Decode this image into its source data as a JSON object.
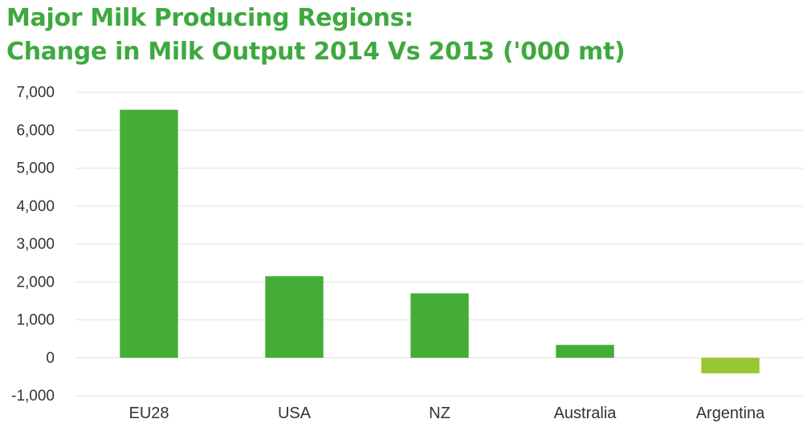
{
  "chart_data": {
    "type": "bar",
    "title_lines": [
      "Major Milk Producing Regions:",
      "Change in Milk Output 2014 Vs 2013 ('000 mt)"
    ],
    "categories": [
      "EU28",
      "USA",
      "NZ",
      "Australia",
      "Argentina"
    ],
    "values": [
      6540,
      2150,
      1700,
      340,
      -410
    ],
    "ylim": [
      -1000,
      7000
    ],
    "yticks": [
      7000,
      6000,
      5000,
      4000,
      3000,
      2000,
      1000,
      0,
      -1000
    ],
    "ytick_labels": [
      "7,000",
      "6,000",
      "5,000",
      "4,000",
      "3,000",
      "2,000",
      "1,000",
      "0",
      "-1,000"
    ],
    "grid": true,
    "legend": "none",
    "colors": {
      "positive": "#44ad35",
      "negative": "#9bc634",
      "title": "#3ea93e",
      "grid": "#e2e2e2"
    }
  }
}
